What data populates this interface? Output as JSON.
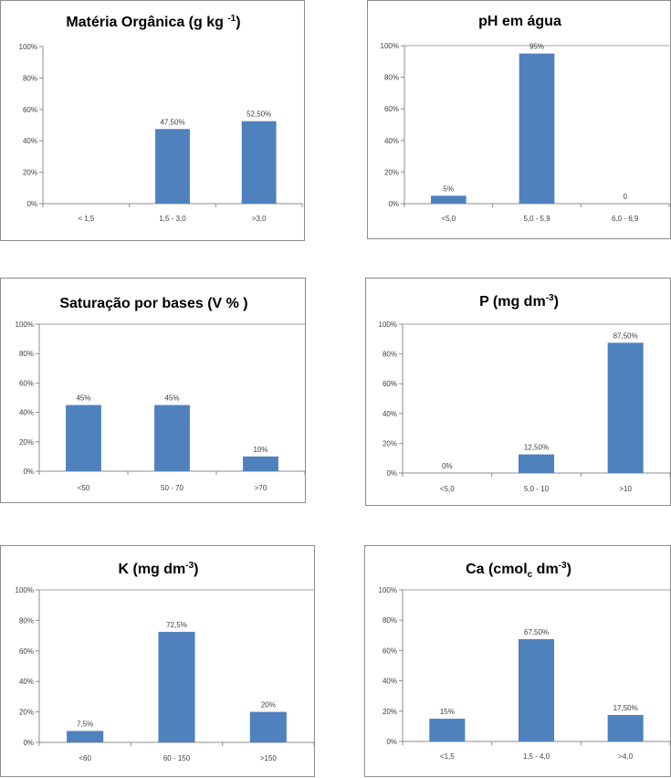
{
  "colors": {
    "bar": "#4f81bd",
    "axis": "#8c8c8c",
    "grid": "#d9d9d9",
    "majorGrid": "#808080",
    "border": "#8c8c8c"
  },
  "chart_data": [
    {
      "type": "bar",
      "title": "Matéria Orgânica (g kg ",
      "title_sup": "-1",
      "title_end": ")",
      "categories": [
        "< 1,5",
        "1,5 - 3,0",
        ">3,0"
      ],
      "values": [
        0,
        47.5,
        52.5
      ],
      "data_labels": [
        "",
        "47,50%",
        "52,50%"
      ],
      "yticks": [
        "0%",
        "20%",
        "40%",
        "60%",
        "80%",
        "100%"
      ],
      "ylim": [
        0,
        100
      ],
      "grid": false
    },
    {
      "type": "bar",
      "title": "pH em água",
      "title_sup": "",
      "title_end": "",
      "categories": [
        "<5,0",
        "5,0 - 5,9",
        "6,0 - 6,9"
      ],
      "values": [
        5,
        95,
        0
      ],
      "data_labels": [
        "5%",
        "95%",
        "0"
      ],
      "yticks": [
        "0%",
        "20%",
        "40%",
        "60%",
        "80%",
        "100%"
      ],
      "ylim": [
        0,
        100
      ],
      "grid": true
    },
    {
      "type": "bar",
      "title": "Saturação por bases (V % )",
      "title_sup": "",
      "title_end": "",
      "categories": [
        "<50",
        "50 - 70",
        ">70"
      ],
      "values": [
        45,
        45,
        10
      ],
      "data_labels": [
        "45%",
        "45%",
        "10%"
      ],
      "yticks": [
        "0%",
        "20%",
        "40%",
        "60%",
        "80%",
        "100%"
      ],
      "ylim": [
        0,
        100
      ],
      "grid": true
    },
    {
      "type": "bar",
      "title": "P (mg dm",
      "title_sup": "-3",
      "title_end": ")",
      "categories": [
        "<5,0",
        "5,0 - 10",
        ">10"
      ],
      "values": [
        0,
        12.5,
        87.5
      ],
      "data_labels": [
        "0%",
        "12,50%",
        "87,50%"
      ],
      "yticks": [
        "0%",
        "20%",
        "40%",
        "60%",
        "80%",
        "100%"
      ],
      "ylim": [
        0,
        100
      ],
      "grid": true
    },
    {
      "type": "bar",
      "title": "K (mg dm",
      "title_sup": "-3",
      "title_end": ")",
      "categories": [
        "<60",
        "60 - 150",
        ">150"
      ],
      "values": [
        7.5,
        72.5,
        20
      ],
      "data_labels": [
        "7,5%",
        "72,5%",
        "20%"
      ],
      "yticks": [
        "0%",
        "20%",
        "40%",
        "60%",
        "80%",
        "100%"
      ],
      "ylim": [
        0,
        100
      ],
      "grid": true
    },
    {
      "type": "bar",
      "title": "Ca (cmol",
      "title_sub": "c",
      "title_end": " dm",
      "title_sup": "-3",
      "title_end2": ")",
      "categories": [
        "<1,5",
        "1,5 - 4,0",
        ">4,0"
      ],
      "values": [
        15,
        67.5,
        17.5
      ],
      "data_labels": [
        "15%",
        "67,50%",
        "17,50%"
      ],
      "yticks": [
        "0%",
        "20%",
        "40%",
        "60%",
        "80%",
        "100%"
      ],
      "ylim": [
        0,
        100
      ],
      "grid": true
    }
  ]
}
